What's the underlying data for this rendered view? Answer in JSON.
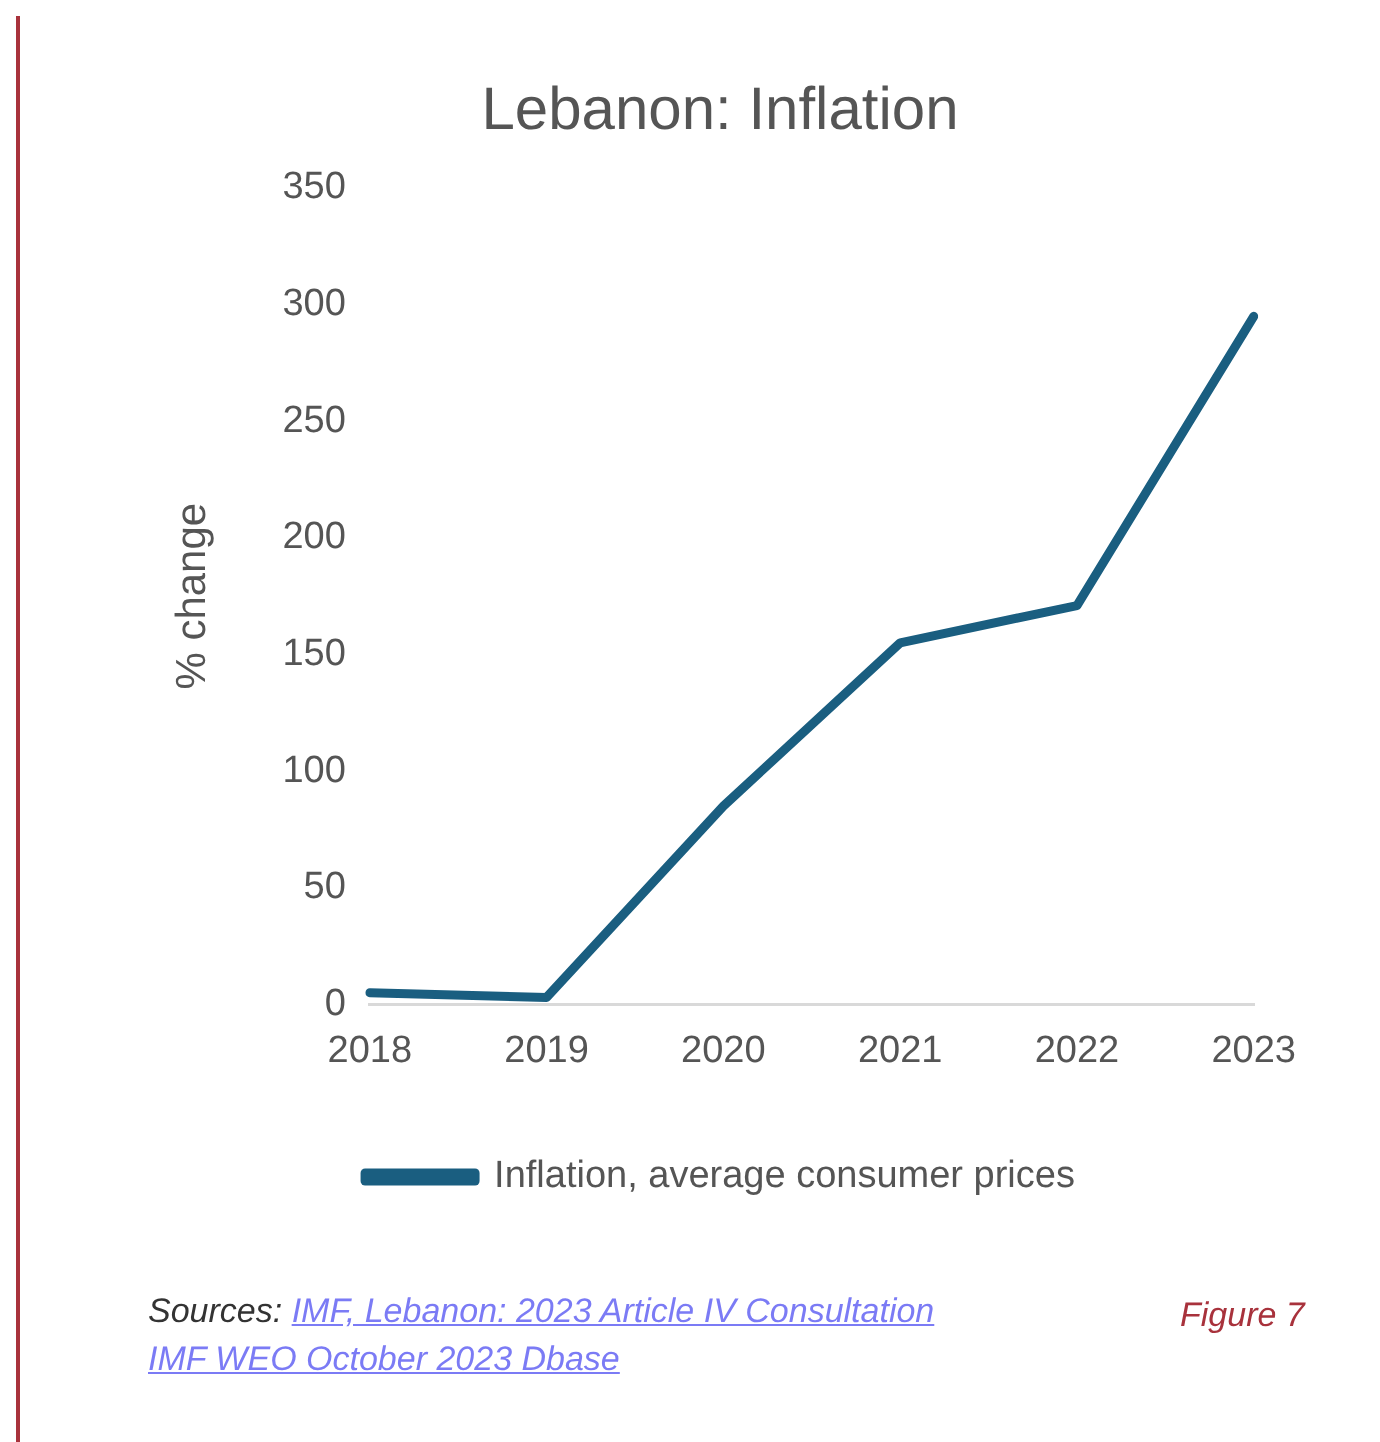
{
  "chart_data": {
    "type": "line",
    "title": "Lebanon: Inflation",
    "ylabel": "% change",
    "categories": [
      "2018",
      "2019",
      "2020",
      "2021",
      "2022",
      "2023"
    ],
    "series": [
      {
        "name": "Inflation, average consumer prices",
        "color": "#1a5e80",
        "values": [
          5,
          3,
          85,
          155,
          171,
          295
        ]
      }
    ],
    "ylim": [
      0,
      350
    ],
    "yticks": [
      0,
      50,
      100,
      150,
      200,
      250,
      300,
      350
    ],
    "grid": false,
    "legend": "bottom",
    "marker": "none",
    "line_style": "solid",
    "annotations": [
      "Sources: IMF, Lebanon: 2023 Article IV Consultation",
      "IMF WEO October 2023 Dbase",
      "Figure 7"
    ]
  }
}
